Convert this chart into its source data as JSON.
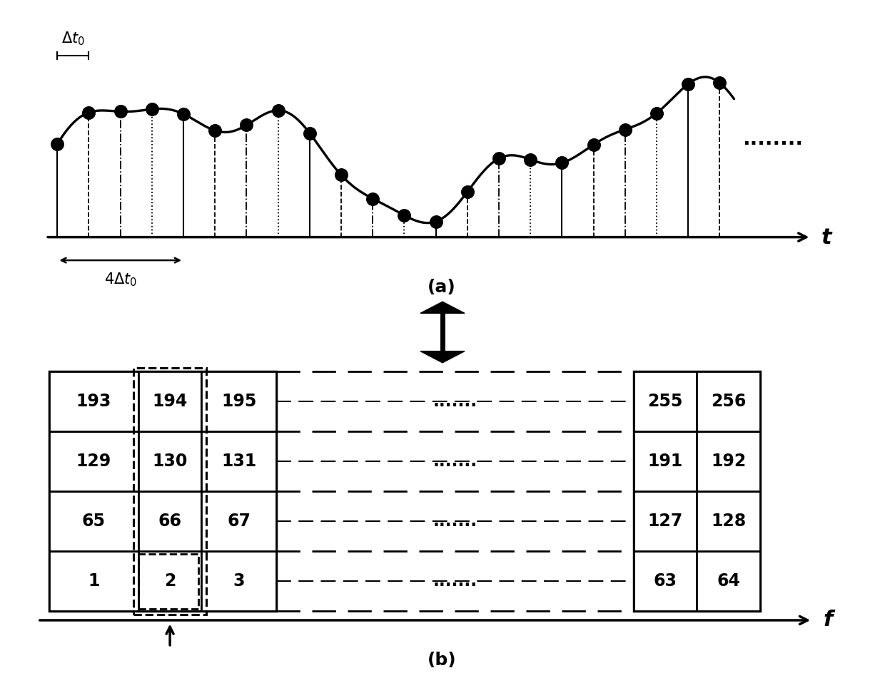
{
  "fig_width": 12.4,
  "fig_height": 9.51,
  "bg_color": "white",
  "panel_a_label": "(a)",
  "panel_b_label": "(b)",
  "t_label": "t",
  "f_label": "f",
  "grid_labels": [
    [
      0,
      "1",
      "2",
      "3",
      "63",
      "64"
    ],
    [
      1,
      "65",
      "66",
      "67",
      "127",
      "128"
    ],
    [
      2,
      "129",
      "130",
      "131",
      "191",
      "192"
    ],
    [
      3,
      "193",
      "194",
      "195",
      "255",
      "256"
    ]
  ]
}
